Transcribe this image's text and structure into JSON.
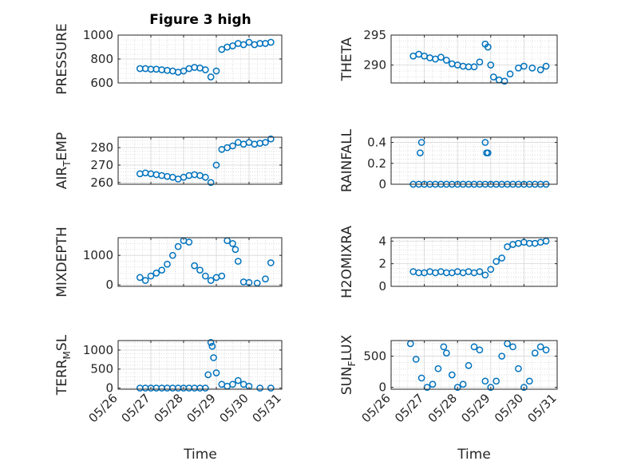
{
  "figure_title": "Figure 3 high",
  "styles": {
    "marker_color": "#0072bd",
    "axis_color": "#262626",
    "grid_color": "#c8c8c8"
  },
  "x_axis": {
    "label": "Time",
    "ticks": [
      "05/26",
      "05/27",
      "05/28",
      "05/29",
      "05/30",
      "05/31"
    ],
    "range_days": [
      "05/26",
      "05/31"
    ]
  },
  "chart_data": [
    {
      "type": "scatter",
      "marker": "circle",
      "title": "Figure 3 high",
      "ylabel": "PRESSURE",
      "ylim": [
        600,
        1000
      ],
      "yticks": [
        {
          "v": 600,
          "label": "600"
        },
        {
          "v": 800,
          "label": "800"
        },
        {
          "v": 1000,
          "label": "1000"
        }
      ],
      "x": [
        "05/26 16:00",
        "05/26 20:00",
        "05/27 00:00",
        "05/27 04:00",
        "05/27 08:00",
        "05/27 12:00",
        "05/27 16:00",
        "05/27 20:00",
        "05/28 00:00",
        "05/28 04:00",
        "05/28 08:00",
        "05/28 12:00",
        "05/28 16:00",
        "05/28 20:00",
        "05/29 00:00",
        "05/29 04:00",
        "05/29 08:00",
        "05/29 12:00",
        "05/29 16:00",
        "05/29 20:00",
        "05/30 00:00",
        "05/30 04:00",
        "05/30 08:00",
        "05/30 12:00",
        "05/30 16:00"
      ],
      "values": [
        720,
        720,
        715,
        715,
        710,
        705,
        700,
        690,
        700,
        720,
        730,
        725,
        710,
        650,
        700,
        880,
        900,
        910,
        930,
        920,
        940,
        920,
        930,
        930,
        940
      ]
    },
    {
      "type": "scatter",
      "marker": "circle",
      "ylabel": "THETA",
      "ylim": [
        287,
        295
      ],
      "yticks": [
        {
          "v": 290,
          "label": "290"
        },
        {
          "v": 295,
          "label": "295"
        }
      ],
      "x": [
        "05/26 16:00",
        "05/26 20:00",
        "05/27 00:00",
        "05/27 04:00",
        "05/27 08:00",
        "05/27 12:00",
        "05/27 16:00",
        "05/27 20:00",
        "05/28 00:00",
        "05/28 04:00",
        "05/28 08:00",
        "05/28 12:00",
        "05/28 16:00",
        "05/28 20:00",
        "05/28 22:00",
        "05/29 00:00",
        "05/29 02:00",
        "05/29 06:00",
        "05/29 10:00",
        "05/29 14:00",
        "05/29 20:00",
        "05/30 00:00",
        "05/30 06:00",
        "05/30 12:00",
        "05/30 16:00"
      ],
      "values": [
        291.5,
        291.8,
        291.5,
        291.2,
        291.0,
        291.3,
        290.8,
        290.2,
        290.0,
        289.8,
        289.7,
        289.7,
        290.5,
        293.5,
        293.0,
        290.0,
        288.0,
        287.5,
        287.3,
        288.5,
        289.5,
        289.8,
        289.5,
        289.2,
        289.8
      ]
    },
    {
      "type": "scatter",
      "marker": "circle",
      "ylabel": "AIR",
      "ylabel_sub": "T",
      "ylabel_rest": "EMP",
      "ylim": [
        259,
        286
      ],
      "yticks": [
        {
          "v": 260,
          "label": "260"
        },
        {
          "v": 270,
          "label": "270"
        },
        {
          "v": 280,
          "label": "280"
        }
      ],
      "x": [
        "05/26 16:00",
        "05/26 20:00",
        "05/27 00:00",
        "05/27 04:00",
        "05/27 08:00",
        "05/27 12:00",
        "05/27 16:00",
        "05/27 20:00",
        "05/28 00:00",
        "05/28 04:00",
        "05/28 08:00",
        "05/28 12:00",
        "05/28 16:00",
        "05/28 20:00",
        "05/29 00:00",
        "05/29 04:00",
        "05/29 08:00",
        "05/29 12:00",
        "05/29 16:00",
        "05/29 20:00",
        "05/30 00:00",
        "05/30 04:00",
        "05/30 08:00",
        "05/30 12:00",
        "05/30 16:00"
      ],
      "values": [
        265,
        265.5,
        265,
        264.5,
        264,
        263.5,
        263,
        262,
        263,
        264,
        264.5,
        264,
        263,
        260,
        270,
        279,
        280,
        281,
        283,
        282,
        283,
        282,
        282.5,
        283,
        285
      ]
    },
    {
      "type": "scatter",
      "marker": "circle",
      "ylabel": "RAINFALL",
      "ylim": [
        0,
        0.45
      ],
      "yticks": [
        {
          "v": 0,
          "label": "0"
        },
        {
          "v": 0.2,
          "label": "0.2"
        },
        {
          "v": 0.4,
          "label": "0.4"
        }
      ],
      "x": [
        "05/26 16:00",
        "05/26 20:00",
        "05/27 00:00",
        "05/27 04:00",
        "05/27 08:00",
        "05/27 12:00",
        "05/27 16:00",
        "05/27 20:00",
        "05/28 00:00",
        "05/28 04:00",
        "05/28 08:00",
        "05/28 12:00",
        "05/28 16:00",
        "05/28 20:00",
        "05/29 00:00",
        "05/29 04:00",
        "05/29 08:00",
        "05/29 12:00",
        "05/29 16:00",
        "05/29 20:00",
        "05/30 00:00",
        "05/30 04:00",
        "05/30 08:00",
        "05/30 12:00",
        "05/30 16:00",
        "05/26 21:00",
        "05/26 22:00",
        "05/28 20:00",
        "05/28 21:00",
        "05/28 22:00"
      ],
      "values": [
        0,
        0,
        0,
        0,
        0,
        0,
        0,
        0,
        0,
        0,
        0,
        0,
        0,
        0,
        0,
        0,
        0,
        0,
        0,
        0,
        0,
        0,
        0,
        0,
        0,
        0.3,
        0.4,
        0.4,
        0.3,
        0.3
      ]
    },
    {
      "type": "scatter",
      "marker": "circle",
      "ylabel": "MIXDEPTH",
      "ylim": [
        -50,
        1600
      ],
      "yticks": [
        {
          "v": 0,
          "label": "0"
        },
        {
          "v": 1000,
          "label": "1000"
        }
      ],
      "x": [
        "05/26 16:00",
        "05/26 20:00",
        "05/27 00:00",
        "05/27 04:00",
        "05/27 08:00",
        "05/27 12:00",
        "05/27 16:00",
        "05/27 20:00",
        "05/28 00:00",
        "05/28 04:00",
        "05/28 08:00",
        "05/28 12:00",
        "05/28 16:00",
        "05/28 20:00",
        "05/29 00:00",
        "05/29 04:00",
        "05/29 08:00",
        "05/29 12:00",
        "05/29 14:00",
        "05/29 16:00",
        "05/29 20:00",
        "05/30 00:00",
        "05/30 06:00",
        "05/30 12:00",
        "05/30 16:00"
      ],
      "values": [
        250,
        150,
        300,
        400,
        500,
        700,
        1000,
        1300,
        1500,
        1450,
        650,
        500,
        300,
        150,
        250,
        300,
        1500,
        1400,
        1200,
        800,
        100,
        80,
        60,
        200,
        750
      ]
    },
    {
      "type": "scatter",
      "marker": "circle",
      "ylabel": "H2OMIXRA",
      "ylim": [
        0,
        4.3
      ],
      "yticks": [
        {
          "v": 0,
          "label": "0"
        },
        {
          "v": 2,
          "label": "2"
        },
        {
          "v": 4,
          "label": "4"
        }
      ],
      "x": [
        "05/26 16:00",
        "05/26 20:00",
        "05/27 00:00",
        "05/27 04:00",
        "05/27 08:00",
        "05/27 12:00",
        "05/27 16:00",
        "05/27 20:00",
        "05/28 00:00",
        "05/28 04:00",
        "05/28 08:00",
        "05/28 12:00",
        "05/28 16:00",
        "05/28 20:00",
        "05/29 00:00",
        "05/29 04:00",
        "05/29 08:00",
        "05/29 12:00",
        "05/29 16:00",
        "05/29 20:00",
        "05/30 00:00",
        "05/30 04:00",
        "05/30 08:00",
        "05/30 12:00",
        "05/30 16:00"
      ],
      "values": [
        1.3,
        1.2,
        1.2,
        1.3,
        1.2,
        1.3,
        1.2,
        1.2,
        1.3,
        1.2,
        1.3,
        1.2,
        1.3,
        1.0,
        1.5,
        2.2,
        2.5,
        3.5,
        3.7,
        3.8,
        3.9,
        3.8,
        3.8,
        3.9,
        4.0
      ]
    },
    {
      "type": "scatter",
      "marker": "circle",
      "ylabel": "TERR",
      "ylabel_sub": "M",
      "ylabel_rest": "SL",
      "ylim": [
        -30,
        1250
      ],
      "yticks": [
        {
          "v": 0,
          "label": "0"
        },
        {
          "v": 500,
          "label": "500"
        },
        {
          "v": 1000,
          "label": "1000"
        }
      ],
      "x": [
        "05/26 16:00",
        "05/26 20:00",
        "05/27 00:00",
        "05/27 04:00",
        "05/27 08:00",
        "05/27 12:00",
        "05/27 16:00",
        "05/27 20:00",
        "05/28 00:00",
        "05/28 04:00",
        "05/28 08:00",
        "05/28 12:00",
        "05/28 16:00",
        "05/28 18:00",
        "05/28 20:00",
        "05/28 21:00",
        "05/28 22:00",
        "05/29 00:00",
        "05/29 04:00",
        "05/29 08:00",
        "05/29 12:00",
        "05/29 16:00",
        "05/29 20:00",
        "05/30 00:00",
        "05/30 08:00",
        "05/30 16:00"
      ],
      "values": [
        0,
        0,
        0,
        0,
        0,
        0,
        0,
        0,
        0,
        0,
        0,
        0,
        0,
        350,
        1200,
        1100,
        800,
        400,
        100,
        50,
        100,
        200,
        100,
        50,
        0,
        0
      ]
    },
    {
      "type": "scatter",
      "marker": "circle",
      "ylabel": "SUN",
      "ylabel_sub": "F",
      "ylabel_rest": "LUX",
      "ylim": [
        -30,
        750
      ],
      "yticks": [
        {
          "v": 0,
          "label": "0"
        },
        {
          "v": 500,
          "label": "500"
        }
      ],
      "x": [
        "05/26 14:00",
        "05/26 18:00",
        "05/26 22:00",
        "05/27 02:00",
        "05/27 06:00",
        "05/27 10:00",
        "05/27 14:00",
        "05/27 16:00",
        "05/27 20:00",
        "05/28 00:00",
        "05/28 04:00",
        "05/28 08:00",
        "05/28 12:00",
        "05/28 16:00",
        "05/28 20:00",
        "05/29 00:00",
        "05/29 04:00",
        "05/29 08:00",
        "05/29 12:00",
        "05/29 16:00",
        "05/29 20:00",
        "05/30 00:00",
        "05/30 04:00",
        "05/30 08:00",
        "05/30 12:00",
        "05/30 16:00"
      ],
      "values": [
        700,
        450,
        150,
        0,
        50,
        300,
        650,
        550,
        200,
        0,
        50,
        350,
        650,
        600,
        100,
        0,
        100,
        500,
        700,
        650,
        300,
        0,
        100,
        550,
        650,
        600
      ]
    }
  ]
}
